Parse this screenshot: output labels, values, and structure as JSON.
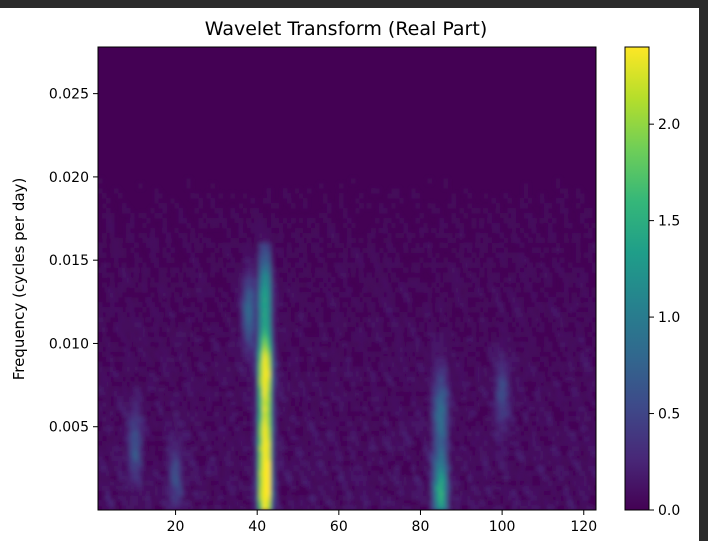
{
  "chart_data": {
    "type": "heatmap",
    "title": "Wavelet Transform (Real Part)",
    "xlabel": "",
    "ylabel": "Frequency (cycles per day)",
    "xlim": [
      1,
      123
    ],
    "ylim": [
      0,
      0.0278
    ],
    "x_ticks": [
      20,
      40,
      60,
      80,
      100,
      120
    ],
    "y_ticks": [
      0.005,
      0.01,
      0.015,
      0.02,
      0.025
    ],
    "y_tick_labels": [
      "0.005",
      "0.010",
      "0.015",
      "0.020",
      "0.025"
    ],
    "colormap": "viridis",
    "colorbar": {
      "range": [
        0.0,
        2.4
      ],
      "ticks": [
        0.0,
        0.5,
        1.0,
        1.5,
        2.0
      ],
      "tick_labels": [
        "0.0",
        "0.5",
        "1.0",
        "1.5",
        "2.0"
      ]
    },
    "features": [
      {
        "x": 42,
        "y": 0.0085,
        "value": 2.1
      },
      {
        "x": 42,
        "y": 0.0012,
        "value": 1.9
      },
      {
        "x": 42,
        "y": 0.0045,
        "value": 1.6
      },
      {
        "x": 42,
        "y": 0.013,
        "value": 1.0
      },
      {
        "x": 85,
        "y": 0.0012,
        "value": 1.2
      },
      {
        "x": 85,
        "y": 0.006,
        "value": 0.7
      },
      {
        "x": 38,
        "y": 0.012,
        "value": 0.8
      },
      {
        "x": 10,
        "y": 0.004,
        "value": 0.55
      },
      {
        "x": 100,
        "y": 0.007,
        "value": 0.5
      },
      {
        "x": 20,
        "y": 0.002,
        "value": 0.45
      }
    ],
    "grid": false,
    "legend": "none"
  },
  "colors": {
    "viridis": [
      "#440154",
      "#482878",
      "#3e4989",
      "#31688e",
      "#26828e",
      "#1f9e89",
      "#35b779",
      "#6ece58",
      "#b5de2b",
      "#fde725"
    ],
    "page_background": "#2b2b2b"
  }
}
